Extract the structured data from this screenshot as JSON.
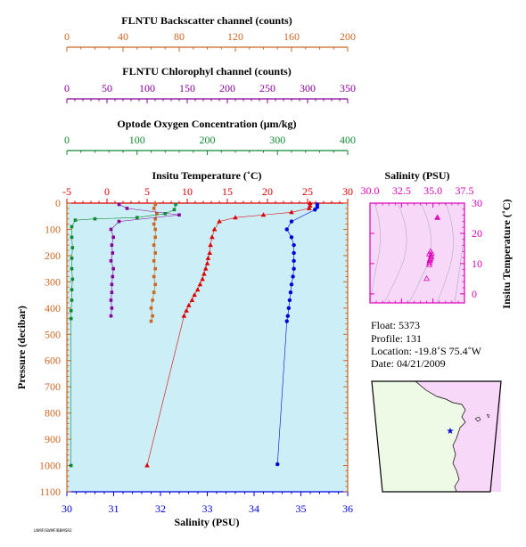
{
  "colors": {
    "backscatter": "#cc6622",
    "chlorophyll": "#880099",
    "oxygen": "#118833",
    "temperature": "#dd0000",
    "salinity": "#0000dd",
    "ts_axis": "#dd00bb",
    "plot_bg": "#cceef7",
    "map_ocean": "#f8d8f8",
    "map_land": "#eefae6"
  },
  "axes": {
    "backscatter": {
      "title": "FLNTU Backscatter channel (counts)",
      "ticks": [
        "0",
        "40",
        "80",
        "120",
        "160",
        "200"
      ]
    },
    "chlorophyll": {
      "title": "FLNTU Chlorophyl channel (counts)",
      "ticks": [
        "0",
        "50",
        "100",
        "150",
        "200",
        "250",
        "300",
        "350"
      ]
    },
    "oxygen": {
      "title": "Optode Oxygen Concentration (μm/kg)",
      "ticks": [
        "0",
        "100",
        "200",
        "300",
        "400"
      ]
    },
    "temperature": {
      "title": "Insitu Temperature (˚C)",
      "ticks": [
        "-5",
        "0",
        "5",
        "10",
        "15",
        "20",
        "25",
        "30"
      ]
    },
    "salinity": {
      "title": "Salinity (PSU)",
      "ticks": [
        "30",
        "31",
        "32",
        "33",
        "34",
        "35",
        "36"
      ]
    },
    "pressure": {
      "title": "Pressure (decibar)",
      "ticks": [
        "0",
        "100",
        "200",
        "300",
        "400",
        "500",
        "600",
        "700",
        "800",
        "900",
        "1000",
        "1100"
      ]
    },
    "ts_salinity": {
      "title": "Salinity (PSU)",
      "ticks": [
        "30.0",
        "32.5",
        "35.0",
        "37.5"
      ]
    },
    "ts_temperature": {
      "title": "Insitu Temperature (˚C)",
      "ticks": [
        "0",
        "10",
        "20",
        "30"
      ]
    }
  },
  "info": {
    "float": "Float:  5373",
    "profile": "Profile:  131",
    "location": "Location:  -19.8˚S  75.4˚W",
    "date": "Date:  04/21/2009"
  },
  "footer_note": "LNMF/SWMF/BBMSR2",
  "chart_data": [
    {
      "type": "scatter",
      "title": "",
      "ylabel": "Pressure (decibar)",
      "ylim": [
        1100,
        0
      ],
      "series": [
        {
          "name": "Insitu Temperature (˚C)",
          "xlim": [
            -5,
            30
          ],
          "marker": "triangle",
          "points": [
            [
              25.3,
              0
            ],
            [
              25.3,
              10
            ],
            [
              25.2,
              20
            ],
            [
              23.0,
              35
            ],
            [
              19.5,
              45
            ],
            [
              16.0,
              55
            ],
            [
              14.0,
              70
            ],
            [
              13.4,
              100
            ],
            [
              13.1,
              130
            ],
            [
              12.9,
              160
            ],
            [
              12.8,
              190
            ],
            [
              12.6,
              210
            ],
            [
              12.5,
              230
            ],
            [
              12.3,
              250
            ],
            [
              12.1,
              270
            ],
            [
              11.9,
              290
            ],
            [
              11.6,
              310
            ],
            [
              11.3,
              330
            ],
            [
              10.9,
              350
            ],
            [
              10.6,
              370
            ],
            [
              10.2,
              390
            ],
            [
              9.9,
              410
            ],
            [
              9.6,
              430
            ],
            [
              5.0,
              1000
            ]
          ]
        },
        {
          "name": "Salinity (PSU)",
          "xlim": [
            30,
            36
          ],
          "marker": "circle",
          "points": [
            [
              35.35,
              5
            ],
            [
              35.35,
              15
            ],
            [
              35.3,
              25
            ],
            [
              34.8,
              70
            ],
            [
              34.7,
              100
            ],
            [
              34.8,
              130
            ],
            [
              34.85,
              160
            ],
            [
              34.85,
              190
            ],
            [
              34.85,
              220
            ],
            [
              34.85,
              250
            ],
            [
              34.83,
              280
            ],
            [
              34.8,
              310
            ],
            [
              34.78,
              340
            ],
            [
              34.76,
              370
            ],
            [
              34.74,
              400
            ],
            [
              34.72,
              430
            ],
            [
              34.7,
              450
            ],
            [
              34.5,
              995
            ]
          ]
        },
        {
          "name": "FLNTU Backscatter channel (counts)",
          "xlim": [
            0,
            200
          ],
          "marker": "square",
          "points": [
            [
              63,
              5
            ],
            [
              62,
              20
            ],
            [
              64,
              40
            ],
            [
              63,
              60
            ],
            [
              62,
              80
            ],
            [
              63,
              100
            ],
            [
              63,
              130
            ],
            [
              62,
              160
            ],
            [
              63,
              190
            ],
            [
              62,
              220
            ],
            [
              63,
              250
            ],
            [
              62,
              280
            ],
            [
              63,
              310
            ],
            [
              62,
              340
            ],
            [
              61,
              370
            ],
            [
              60,
              400
            ],
            [
              61,
              430
            ],
            [
              60,
              450
            ]
          ]
        },
        {
          "name": "FLNTU Chlorophyl channel (counts)",
          "xlim": [
            0,
            350
          ],
          "marker": "square",
          "points": [
            [
              65,
              5
            ],
            [
              75,
              20
            ],
            [
              140,
              45
            ],
            [
              65,
              70
            ],
            [
              55,
              100
            ],
            [
              58,
              130
            ],
            [
              56,
              160
            ],
            [
              57,
              190
            ],
            [
              55,
              220
            ],
            [
              58,
              250
            ],
            [
              57,
              280
            ],
            [
              56,
              310
            ],
            [
              56,
              340
            ],
            [
              55,
              370
            ],
            [
              56,
              400
            ],
            [
              55,
              430
            ]
          ]
        },
        {
          "name": "Optode Oxygen Concentration (μm/kg)",
          "xlim": [
            0,
            400
          ],
          "marker": "square",
          "points": [
            [
              155,
              5
            ],
            [
              153,
              25
            ],
            [
              140,
              40
            ],
            [
              100,
              55
            ],
            [
              40,
              60
            ],
            [
              12,
              65
            ],
            [
              7,
              90
            ],
            [
              7,
              130
            ],
            [
              8,
              170
            ],
            [
              7,
              210
            ],
            [
              7,
              250
            ],
            [
              8,
              290
            ],
            [
              7,
              330
            ],
            [
              7,
              370
            ],
            [
              6,
              410
            ],
            [
              6,
              440
            ],
            [
              6,
              1000
            ]
          ]
        }
      ]
    },
    {
      "type": "scatter",
      "title": "",
      "xlabel": "Salinity (PSU)",
      "ylabel": "Insitu Temperature (˚C)",
      "xlim": [
        30,
        37.5
      ],
      "ylim": [
        -3,
        30
      ],
      "points": [
        [
          35.35,
          25.2
        ],
        [
          34.8,
          14.0
        ],
        [
          34.7,
          13.1
        ],
        [
          34.85,
          12.6
        ],
        [
          34.85,
          12.1
        ],
        [
          34.8,
          11.6
        ],
        [
          34.76,
          10.9
        ],
        [
          34.72,
          10.2
        ],
        [
          34.7,
          9.6
        ],
        [
          34.5,
          5.0
        ],
        [
          34.9,
          13.4
        ],
        [
          34.75,
          11.2
        ]
      ]
    }
  ]
}
